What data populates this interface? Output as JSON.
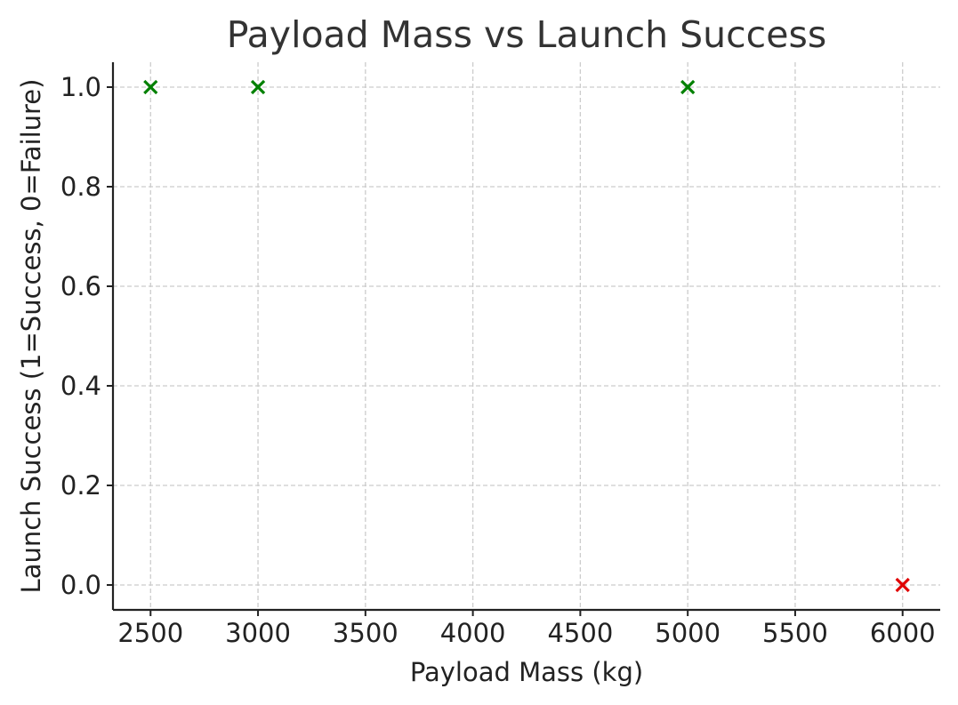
{
  "chart_data": {
    "type": "scatter",
    "title": "Payload Mass vs Launch Success",
    "xlabel": "Payload Mass (kg)",
    "ylabel": "Launch Success (1=Success, 0=Failure)",
    "xlim": [
      2325,
      6175
    ],
    "ylim": [
      -0.05,
      1.05
    ],
    "xticks": [
      2500,
      3000,
      3500,
      4000,
      4500,
      5000,
      5500,
      6000
    ],
    "xtick_labels": [
      "2500",
      "3000",
      "3500",
      "4000",
      "4500",
      "5000",
      "5500",
      "6000"
    ],
    "yticks": [
      0.0,
      0.2,
      0.4,
      0.6,
      0.8,
      1.0
    ],
    "ytick_labels": [
      "0.0",
      "0.2",
      "0.4",
      "0.6",
      "0.8",
      "1.0"
    ],
    "grid": true,
    "marker": "x",
    "points": [
      {
        "x": 2500,
        "y": 1,
        "color": "#008000"
      },
      {
        "x": 3000,
        "y": 1,
        "color": "#008000"
      },
      {
        "x": 5000,
        "y": 1,
        "color": "#008000"
      },
      {
        "x": 6000,
        "y": 0,
        "color": "#e00000"
      }
    ]
  }
}
